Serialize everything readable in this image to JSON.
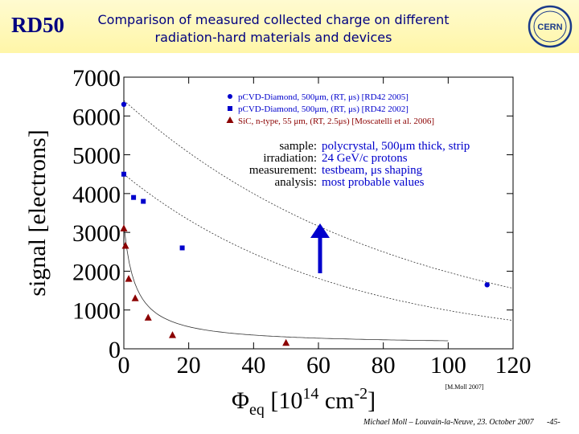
{
  "header": {
    "logo_text": "RD50",
    "title_line1": "Comparison of measured collected charge on different",
    "title_line2": "radiation-hard materials and devices",
    "cern_logo": "CERN"
  },
  "footer": {
    "text": "Michael Moll – Louvain-la-Neuve, 23. October 2007",
    "page": "-45-"
  },
  "colors": {
    "blue": "#0000cc",
    "dark_red": "#8b0000",
    "header_bg": "#fff6a8"
  },
  "chart_data": {
    "type": "scatter",
    "ylabel": "signal [electrons]",
    "xlabel_prefix": "Φ",
    "xlabel_sub": "eq",
    "xlabel_unit_a": "[10",
    "xlabel_sup1": "14",
    "xlabel_unit_b": " cm",
    "xlabel_sup2": "-2",
    "xlabel_unit_c": "]",
    "xlim": [
      0,
      120
    ],
    "ylim": [
      0,
      7000
    ],
    "x_ticks": [
      "0",
      "20",
      "40",
      "60",
      "80",
      "100",
      "120"
    ],
    "y_ticks": [
      "0",
      "1000",
      "2000",
      "3000",
      "4000",
      "5000",
      "6000",
      "7000"
    ],
    "grid": false,
    "legend_position": "top-right",
    "series": [
      {
        "name": "pCVD-Diamond, 500μm, (RT, μs) [RD42 2005]",
        "marker": "circle",
        "color": "#0000cc",
        "points": [
          [
            0,
            6300
          ],
          [
            112,
            1650
          ]
        ]
      },
      {
        "name": "pCVD-Diamond, 500μm, (RT, μs) [RD42 2002]",
        "marker": "square",
        "color": "#0000cc",
        "points": [
          [
            0,
            4500
          ],
          [
            3,
            3900
          ],
          [
            6,
            3800
          ],
          [
            18,
            2600
          ]
        ]
      },
      {
        "name": "SiC, n-type, 55 μm, (RT, 2.5μs) [Moscatelli et al. 2006]",
        "marker": "triangle",
        "color": "#8b0000",
        "points": [
          [
            0,
            3100
          ],
          [
            0.5,
            2650
          ],
          [
            1.5,
            1800
          ],
          [
            3.5,
            1300
          ],
          [
            7.5,
            800
          ],
          [
            15,
            350
          ],
          [
            50,
            150
          ]
        ]
      }
    ],
    "info": {
      "labels": [
        "sample:",
        "irradiation:",
        "measurement:",
        "analysis:"
      ],
      "values": [
        "polycrystal, 500μm thick, strip",
        "24 GeV/c protons",
        "testbeam, μs shaping",
        "most probable values"
      ]
    },
    "credit": "[M.Moll 2007]"
  }
}
